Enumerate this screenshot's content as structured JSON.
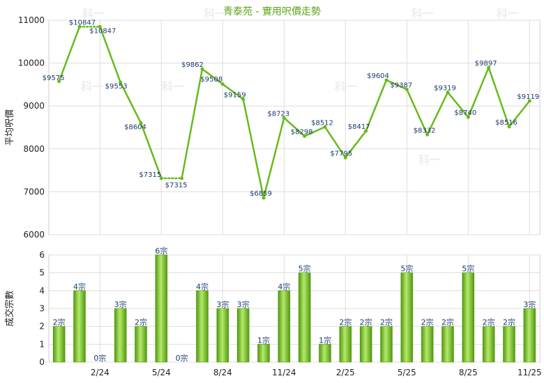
{
  "chart_data": {
    "title": "青泰苑 - 實用呎價走勢",
    "months": [
      "",
      "",
      "2/24",
      "",
      "",
      "5/24",
      "",
      "",
      "8/24",
      "",
      "",
      "11/24",
      "",
      "",
      "2/25",
      "",
      "",
      "5/25",
      "",
      "",
      "8/25",
      "",
      "",
      "11/25"
    ],
    "watermark": "科一",
    "price": {
      "type": "line",
      "ylabel": "平均呎價",
      "ylim": [
        6000,
        11000
      ],
      "yticks": [
        6000,
        7000,
        8000,
        9000,
        10000,
        11000
      ],
      "values": [
        9575,
        10847,
        10847,
        9553,
        8604,
        7315,
        7315,
        9862,
        9508,
        9159,
        6859,
        8723,
        8298,
        8512,
        7795,
        8417,
        9604,
        9387,
        8332,
        9319,
        8740,
        9897,
        8516,
        9119
      ],
      "labels": [
        "$9575",
        "$10847",
        "$10847",
        "$9553",
        "$8604",
        "$7315",
        "$7315",
        "$9862",
        "$9508",
        "$9159",
        "$6859",
        "$8723",
        "$8298",
        "$8512",
        "$7795",
        "$8417",
        "$9604",
        "$9387",
        "$8332",
        "$9319",
        "$8740",
        "$9897",
        "$8516",
        "$9119"
      ],
      "dashed_segments": [
        [
          1,
          2
        ],
        [
          5,
          6
        ]
      ],
      "color": "#66bb1a"
    },
    "volume": {
      "type": "bar",
      "ylabel": "成交宗數",
      "ylim": [
        0,
        6
      ],
      "yticks": [
        0,
        1,
        2,
        3,
        4,
        5,
        6
      ],
      "values": [
        2,
        4,
        0,
        3,
        2,
        6,
        0,
        4,
        3,
        3,
        1,
        4,
        5,
        1,
        2,
        2,
        2,
        5,
        2,
        2,
        5,
        2,
        2,
        3
      ],
      "labels": [
        "2宗",
        "4宗",
        "0宗",
        "3宗",
        "2宗",
        "6宗",
        "0宗",
        "4宗",
        "3宗",
        "3宗",
        "1宗",
        "4宗",
        "5宗",
        "1宗",
        "2宗",
        "2宗",
        "2宗",
        "5宗",
        "2宗",
        "2宗",
        "5宗",
        "2宗",
        "2宗",
        "3宗"
      ],
      "color": "#66bb1a"
    }
  }
}
